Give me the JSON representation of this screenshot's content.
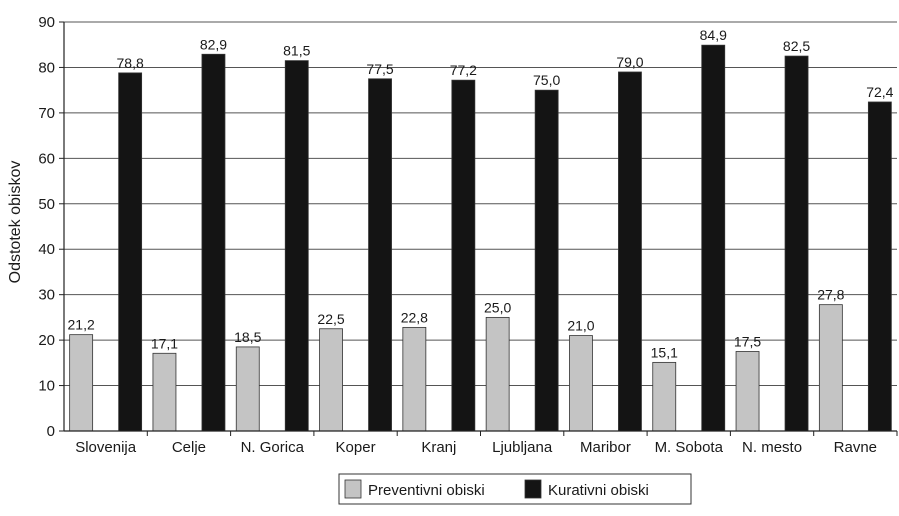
{
  "chart_data": {
    "type": "bar",
    "title": "",
    "xlabel": "",
    "ylabel": "Odstotek obiskov",
    "ylim": [
      0,
      90
    ],
    "yticks": [
      0,
      10,
      20,
      30,
      40,
      50,
      60,
      70,
      80,
      90
    ],
    "grid": true,
    "legend_position": "bottom",
    "categories": [
      "Slovenija",
      "Celje",
      "N. Gorica",
      "Koper",
      "Kranj",
      "Ljubljana",
      "Maribor",
      "M. Sobota",
      "N. mesto",
      "Ravne"
    ],
    "series": [
      {
        "name": "Preventivni obiski",
        "color": "#c4c4c4",
        "values": [
          21.2,
          17.1,
          18.5,
          22.5,
          22.8,
          25.0,
          21.0,
          15.1,
          17.5,
          27.8
        ],
        "labels": [
          "21,2",
          "17,1",
          "18,5",
          "22,5",
          "22,8",
          "25,0",
          "21,0",
          "15,1",
          "17,5",
          "27,8"
        ]
      },
      {
        "name": "Kurativni obiski",
        "color": "#141414",
        "values": [
          78.8,
          82.9,
          81.5,
          77.5,
          77.2,
          75.0,
          79.0,
          84.9,
          82.5,
          72.4
        ],
        "labels": [
          "78,8",
          "82,9",
          "81,5",
          "77,5",
          "77,2",
          "75,0",
          "79,0",
          "84,9",
          "82,5",
          "72,4"
        ]
      }
    ]
  }
}
